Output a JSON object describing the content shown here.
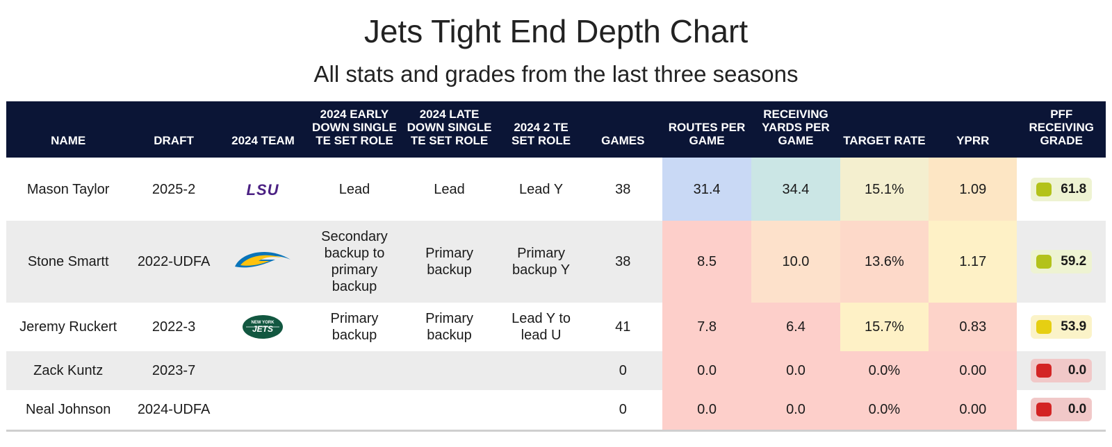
{
  "title": "Jets Tight End Depth Chart",
  "subtitle": "All stats and grades from the last three seasons",
  "colors": {
    "header_bg": "#0b1536",
    "routes_blue": "#c9d9f5",
    "yards_teal": "#cbe6e5",
    "light_yellow": "#f4efcf",
    "orange": "#fde6c4",
    "red": "#fdcfca",
    "pale_yellow": "#fef1c6",
    "grade_green_bg": "#eef3d2",
    "grade_green_dot": "#b3c21a",
    "grade_yellow_bg": "#fbf3c8",
    "grade_yellow_dot": "#e6cf12",
    "grade_red_bg": "#f1c8c8",
    "grade_red_dot": "#d32424"
  },
  "chart_data": {
    "type": "table",
    "title": "Jets Tight End Depth Chart",
    "subtitle": "All stats and grades from the last three seasons",
    "columns": [
      "NAME",
      "DRAFT",
      "2024 TEAM",
      "2024 EARLY DOWN SINGLE TE SET ROLE",
      "2024 LATE DOWN SINGLE TE SET ROLE",
      "2024 2 TE SET ROLE",
      "GAMES",
      "ROUTES PER GAME",
      "RECEIVING YARDS PER GAME",
      "TARGET RATE",
      "YPRR",
      "PFF RECEIVING GRADE"
    ],
    "rows": [
      {
        "name": "Mason Taylor",
        "draft": "2025-2",
        "team_logo": "lsu-logo",
        "early_role": "Lead",
        "late_role": "Lead",
        "two_te_role": "Lead Y",
        "games": "38",
        "routes": "31.4",
        "yards": "34.4",
        "target_rate": "15.1%",
        "yprr": "1.09",
        "grade": "61.8",
        "cell_colors": [
          "#c9d9f5",
          "#cbe6e5",
          "#f4efcf",
          "#fde6c4"
        ],
        "grade_bg": "#eef3d2",
        "grade_dot": "#b3c21a"
      },
      {
        "name": "Stone Smartt",
        "draft": "2022-UDFA",
        "team_logo": "chargers-logo",
        "early_role": "Secondary backup to primary backup",
        "late_role": "Primary backup",
        "two_te_role": "Primary backup Y",
        "games": "38",
        "routes": "8.5",
        "yards": "10.0",
        "target_rate": "13.6%",
        "yprr": "1.17",
        "grade": "59.2",
        "cell_colors": [
          "#fdcfca",
          "#fde1cb",
          "#fdd9c9",
          "#fef1c6"
        ],
        "grade_bg": "#eef3d2",
        "grade_dot": "#b3c21a"
      },
      {
        "name": "Jeremy Ruckert",
        "draft": "2022-3",
        "team_logo": "jets-logo",
        "early_role": "Primary backup",
        "late_role": "Primary backup",
        "two_te_role": "Lead Y to lead U",
        "games": "41",
        "routes": "7.8",
        "yards": "6.4",
        "target_rate": "15.7%",
        "yprr": "0.83",
        "grade": "53.9",
        "cell_colors": [
          "#fdcfca",
          "#fdcfca",
          "#fef1c6",
          "#fdd3c9"
        ],
        "grade_bg": "#fbf3c8",
        "grade_dot": "#e6cf12"
      },
      {
        "name": "Zack Kuntz",
        "draft": "2023-7",
        "team_logo": "",
        "early_role": "",
        "late_role": "",
        "two_te_role": "",
        "games": "0",
        "routes": "0.0",
        "yards": "0.0",
        "target_rate": "0.0%",
        "yprr": "0.00",
        "grade": "0.0",
        "cell_colors": [
          "#fdcfca",
          "#fdcfca",
          "#fdcfca",
          "#fdcfca"
        ],
        "grade_bg": "#f1c8c8",
        "grade_dot": "#d32424"
      },
      {
        "name": "Neal Johnson",
        "draft": "2024-UDFA",
        "team_logo": "",
        "early_role": "",
        "late_role": "",
        "two_te_role": "",
        "games": "0",
        "routes": "0.0",
        "yards": "0.0",
        "target_rate": "0.0%",
        "yprr": "0.00",
        "grade": "0.0",
        "cell_colors": [
          "#fdcfca",
          "#fdcfca",
          "#fdcfca",
          "#fdcfca"
        ],
        "grade_bg": "#f1c8c8",
        "grade_dot": "#d32424"
      }
    ]
  }
}
